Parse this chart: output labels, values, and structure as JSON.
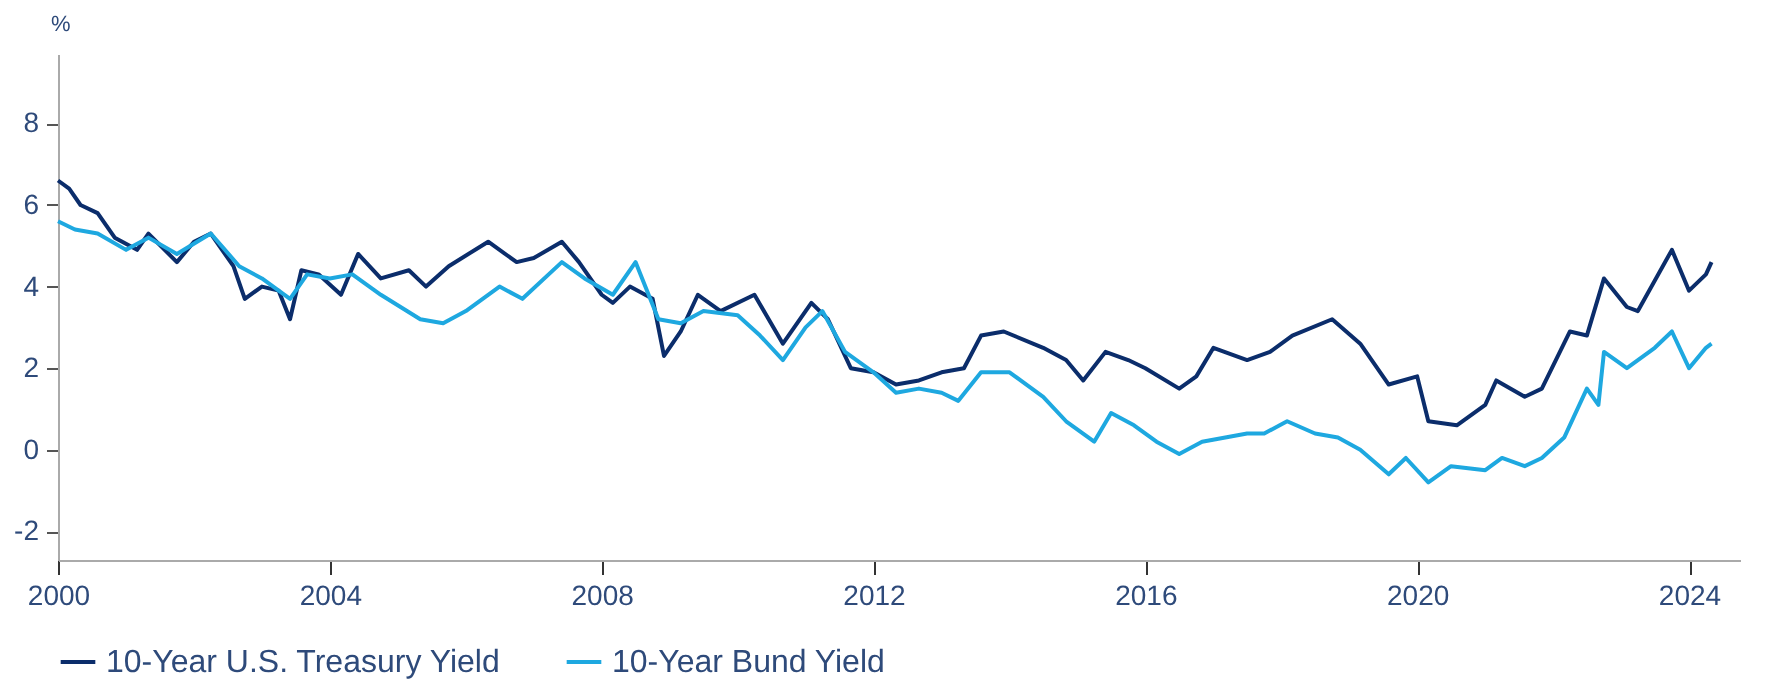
{
  "chart_data": {
    "type": "line",
    "ylabel": "%",
    "xlim": [
      "2000-01-01",
      "2024-10-01"
    ],
    "ylim": [
      -2.7,
      9.7
    ],
    "yticks": [
      -2,
      0,
      2,
      4,
      6,
      8
    ],
    "xticks": [
      {
        "value": "2000-01-01",
        "label": "2000"
      },
      {
        "value": "2004-01-01",
        "label": "2004"
      },
      {
        "value": "2008-01-01",
        "label": "2008"
      },
      {
        "value": "2012-01-01",
        "label": "2012"
      },
      {
        "value": "2016-01-01",
        "label": "2016"
      },
      {
        "value": "2020-01-01",
        "label": "2020"
      },
      {
        "value": "2024-01-01",
        "label": "2024"
      }
    ],
    "grid": false,
    "legend": "bottom",
    "marker": "none",
    "line_style": "solid",
    "series": [
      {
        "name": "10-Year U.S. Treasury Yield",
        "color": "#0b2d6b",
        "x": [
          "2000-01",
          "2000-03",
          "2000-05",
          "2000-08",
          "2000-11",
          "2001-03",
          "2001-05",
          "2001-10",
          "2002-01",
          "2002-04",
          "2002-08",
          "2002-10",
          "2003-01",
          "2003-04",
          "2003-06",
          "2003-08",
          "2003-11",
          "2004-03",
          "2004-06",
          "2004-10",
          "2005-03",
          "2005-06",
          "2005-10",
          "2006-05",
          "2006-10",
          "2007-01",
          "2007-06",
          "2007-09",
          "2008-01",
          "2008-03",
          "2008-06",
          "2008-10",
          "2008-12",
          "2009-03",
          "2009-06",
          "2009-10",
          "2010-04",
          "2010-09",
          "2010-11",
          "2011-02",
          "2011-05",
          "2011-09",
          "2012-01",
          "2012-05",
          "2012-09",
          "2013-01",
          "2013-05",
          "2013-08",
          "2013-12",
          "2014-07",
          "2014-11",
          "2015-02",
          "2015-06",
          "2015-10",
          "2016-01",
          "2016-07",
          "2016-10",
          "2017-01",
          "2017-07",
          "2017-11",
          "2018-03",
          "2018-10",
          "2019-03",
          "2019-08",
          "2020-01",
          "2020-03",
          "2020-08",
          "2021-01",
          "2021-03",
          "2021-08",
          "2021-11",
          "2022-04",
          "2022-07",
          "2022-10",
          "2023-02",
          "2023-04",
          "2023-10",
          "2024-01",
          "2024-04",
          "2024-05"
        ],
        "values": [
          6.6,
          6.4,
          6.0,
          5.8,
          5.2,
          4.9,
          5.3,
          4.6,
          5.1,
          5.3,
          4.5,
          3.7,
          4.0,
          3.9,
          3.2,
          4.4,
          4.3,
          3.8,
          4.8,
          4.2,
          4.4,
          4.0,
          4.5,
          5.1,
          4.6,
          4.7,
          5.1,
          4.6,
          3.8,
          3.6,
          4.0,
          3.7,
          2.3,
          2.9,
          3.8,
          3.4,
          3.8,
          2.6,
          3.0,
          3.6,
          3.2,
          2.0,
          1.9,
          1.6,
          1.7,
          1.9,
          2.0,
          2.8,
          2.9,
          2.5,
          2.2,
          1.7,
          2.4,
          2.2,
          2.0,
          1.5,
          1.8,
          2.5,
          2.2,
          2.4,
          2.8,
          3.2,
          2.6,
          1.6,
          1.8,
          0.7,
          0.6,
          1.1,
          1.7,
          1.3,
          1.5,
          2.9,
          2.8,
          4.2,
          3.5,
          3.4,
          4.9,
          3.9,
          4.3,
          4.6
        ]
      },
      {
        "name": "10-Year Bund Yield",
        "color": "#1ea8e0",
        "x": [
          "2000-01",
          "2000-04",
          "2000-08",
          "2001-01",
          "2001-05",
          "2001-10",
          "2002-04",
          "2002-09",
          "2003-01",
          "2003-06",
          "2003-09",
          "2004-01",
          "2004-05",
          "2004-10",
          "2005-05",
          "2005-09",
          "2006-01",
          "2006-07",
          "2006-11",
          "2007-06",
          "2007-10",
          "2008-03",
          "2008-07",
          "2008-11",
          "2009-03",
          "2009-07",
          "2010-01",
          "2010-05",
          "2010-09",
          "2011-01",
          "2011-04",
          "2011-08",
          "2012-01",
          "2012-05",
          "2012-09",
          "2013-01",
          "2013-04",
          "2013-08",
          "2014-01",
          "2014-07",
          "2014-11",
          "2015-04",
          "2015-07",
          "2015-11",
          "2016-03",
          "2016-07",
          "2016-11",
          "2017-07",
          "2017-10",
          "2018-02",
          "2018-07",
          "2018-11",
          "2019-03",
          "2019-08",
          "2019-11",
          "2020-03",
          "2020-07",
          "2021-01",
          "2021-04",
          "2021-08",
          "2021-11",
          "2022-03",
          "2022-07",
          "2022-09",
          "2022-10",
          "2023-02",
          "2023-07",
          "2023-10",
          "2024-01",
          "2024-04",
          "2024-05"
        ],
        "values": [
          5.6,
          5.4,
          5.3,
          4.9,
          5.2,
          4.8,
          5.3,
          4.5,
          4.2,
          3.7,
          4.3,
          4.2,
          4.3,
          3.8,
          3.2,
          3.1,
          3.4,
          4.0,
          3.7,
          4.6,
          4.2,
          3.8,
          4.6,
          3.2,
          3.1,
          3.4,
          3.3,
          2.8,
          2.2,
          3.0,
          3.4,
          2.4,
          1.9,
          1.4,
          1.5,
          1.4,
          1.2,
          1.9,
          1.9,
          1.3,
          0.7,
          0.2,
          0.9,
          0.6,
          0.2,
          -0.1,
          0.2,
          0.4,
          0.4,
          0.7,
          0.4,
          0.3,
          0.0,
          -0.6,
          -0.2,
          -0.8,
          -0.4,
          -0.5,
          -0.2,
          -0.4,
          -0.2,
          0.3,
          1.5,
          1.1,
          2.4,
          2.0,
          2.5,
          2.9,
          2.0,
          2.5,
          2.6
        ]
      }
    ]
  }
}
